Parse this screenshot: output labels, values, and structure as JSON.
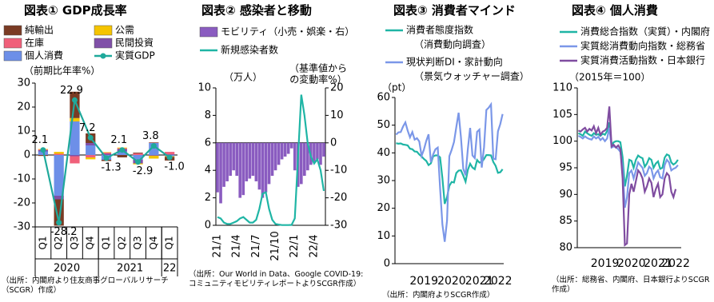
{
  "chart_data": [
    {
      "type": "bar",
      "title": "図表① GDP成長率",
      "ylabel": "（前期比年率%）",
      "stacked": true,
      "source": "（出所：内閣府より住友商事グローバルリサーチ（SCGR）作成）",
      "categories": [
        "Q1",
        "Q2",
        "Q3",
        "Q4",
        "Q1",
        "Q2",
        "Q3",
        "Q4",
        "Q1"
      ],
      "category_groups": [
        {
          "label": "2020",
          "count": 4
        },
        {
          "label": "2021",
          "count": 4
        },
        {
          "label": "22",
          "count": 1
        }
      ],
      "ylim": [
        -30,
        30
      ],
      "yticks": [
        -30,
        -20,
        -10,
        0,
        10,
        20,
        30
      ],
      "negative_label_color": "#e00000",
      "series": [
        {
          "name": "純輸出",
          "type": "bar",
          "color": "#7a3b24",
          "values": [
            -0.4,
            -11,
            11,
            4,
            -0.5,
            -1,
            0.3,
            0.2,
            -1.5
          ]
        },
        {
          "name": "公需",
          "type": "bar",
          "color": "#f5c400",
          "values": [
            0.2,
            0.8,
            1.4,
            -0.8,
            0.2,
            0.3,
            -0.4,
            -1.2,
            -0.3
          ]
        },
        {
          "name": "在庫",
          "type": "bar",
          "color": "#f0607a",
          "values": [
            0.3,
            0.5,
            -3,
            -1,
            0.5,
            0.3,
            0.7,
            0.1,
            1
          ]
        },
        {
          "name": "民間投資",
          "type": "bar",
          "color": "#8050a8",
          "values": [
            0.5,
            -1.5,
            -0.5,
            1,
            0.5,
            1,
            -1.5,
            -0.3,
            0.3
          ]
        },
        {
          "name": "個人消費",
          "type": "bar",
          "color": "#6d8fe8",
          "values": [
            1.5,
            -17,
            14,
            4,
            -2,
            1.5,
            -2,
            5,
            -0.5
          ]
        },
        {
          "name": "実質GDP",
          "type": "line",
          "markers": true,
          "color": "#1fa99b",
          "values": [
            2.1,
            -28.2,
            22.9,
            7.2,
            -1.3,
            2.1,
            -2.9,
            3.8,
            -1.0
          ],
          "value_labels": [
            "2.1",
            "-28.2",
            "22.9",
            "7.2",
            "-1.3",
            "2.1",
            "-2.9",
            "3.8",
            "-1.0"
          ]
        }
      ]
    },
    {
      "type": "bar",
      "title": "図表② 感染者と移動",
      "ylabel": "（万人）",
      "y2label": [
        "（基準値から",
        "の変動率%）"
      ],
      "source": "（出所：Our World in Data、Google COVID-19:コミュニティモビリティレポートよりSCGR作成）",
      "categories": [
        "21/1",
        null,
        null,
        null,
        null,
        null,
        "21/4",
        null,
        null,
        null,
        null,
        null,
        "21/7",
        null,
        null,
        null,
        null,
        null,
        "21/10",
        null,
        null,
        null,
        null,
        null,
        "22/1",
        null,
        null,
        null,
        null,
        null,
        "22/4",
        null,
        null,
        null
      ],
      "ylim": [
        0,
        10
      ],
      "yticks": [
        0,
        2,
        4,
        6,
        8,
        10
      ],
      "y2lim": [
        -30,
        20
      ],
      "y2ticks": [
        -30,
        -20,
        -10,
        0,
        10,
        20
      ],
      "series": [
        {
          "name": "モビリティ（小売・娯楽・右）",
          "type": "bar",
          "axis": "y2",
          "color": "#8a5cc0",
          "values": [
            -18,
            -22,
            -16,
            -14,
            -12,
            -10,
            -12,
            -20,
            -19,
            -14,
            -13,
            -12,
            -14,
            -17,
            -20,
            -18,
            -15,
            -12,
            -10,
            -8,
            -6,
            -5,
            -4,
            -2,
            -10,
            -16,
            -15,
            -12,
            -10,
            -8,
            -7,
            -6,
            -8,
            -5
          ]
        },
        {
          "name": "新規感染者数",
          "type": "line",
          "color": "#1fb5a5",
          "values": [
            0.6,
            0.5,
            0.2,
            0.1,
            0.1,
            0.2,
            0.3,
            0.5,
            0.6,
            0.4,
            0.2,
            0.2,
            0.4,
            1.2,
            2.3,
            2.4,
            1.2,
            0.4,
            0.1,
            0.05,
            0.02,
            0.02,
            0.02,
            0.03,
            0.5,
            5.0,
            9.5,
            8.0,
            6.0,
            5.0,
            4.5,
            4.8,
            4.0,
            2.5
          ]
        }
      ]
    },
    {
      "type": "line",
      "title": "図表③ 消費者マインド",
      "ylabel": "（pt）",
      "source": "（出所：内閣府よりSCGR作成）",
      "categories": [
        null,
        null,
        null,
        null,
        null,
        null,
        null,
        null,
        null,
        null,
        null,
        null,
        "2019",
        null,
        null,
        null,
        null,
        null,
        null,
        null,
        null,
        null,
        null,
        null,
        "2020",
        null,
        null,
        null,
        null,
        null,
        null,
        null,
        null,
        null,
        null,
        null,
        "2021",
        null,
        null,
        null,
        null,
        null,
        null,
        null,
        "2022",
        null,
        null
      ],
      "ylim": [
        0,
        60
      ],
      "yticks": [
        0,
        10,
        20,
        30,
        40,
        50,
        60
      ],
      "series": [
        {
          "name": "消費者態度指数",
          "note": "（消費動向調査）",
          "type": "line",
          "color": "#1fb5a5",
          "values": [
            43.5,
            43.3,
            43.4,
            43.0,
            42.9,
            42.7,
            41.5,
            41.3,
            40.5,
            40.4,
            39.4,
            38.7,
            37.8,
            37.1,
            35.6,
            36.2,
            38.7,
            39.1,
            39.1,
            38.4,
            30.9,
            21.6,
            24.0,
            28.1,
            29.5,
            29.3,
            32.7,
            33.6,
            33.7,
            31.8,
            29.6,
            33.8,
            36.1,
            34.7,
            34.1,
            37.4,
            36.5,
            36.7,
            37.8,
            39.2,
            39.2,
            39.1,
            36.7,
            35.3,
            32.8,
            33.0,
            34.1
          ]
        },
        {
          "name": "現状判断DI・家計動向",
          "note": "（景気ウォッチャー調査）",
          "type": "line",
          "color": "#7b97e8",
          "values": [
            46.6,
            47.4,
            47.5,
            49.5,
            51.0,
            48.0,
            45.6,
            47.5,
            44.8,
            45.3,
            44.1,
            38.9,
            41.2,
            44.3,
            46.7,
            36.7,
            39.4,
            41.3,
            41.9,
            27.4,
            14.2,
            7.9,
            15.5,
            38.8,
            41.1,
            43.9,
            49.3,
            54.5,
            45.6,
            34.3,
            31.9,
            41.3,
            49.0,
            39.1,
            38.1,
            47.6,
            48.4,
            34.7,
            42.1,
            55.5,
            56.3,
            57.5,
            37.9,
            37.7,
            47.8,
            50.4,
            54.0
          ]
        }
      ]
    },
    {
      "type": "line",
      "title": "図表④ 個人消費",
      "ylabel": "（2015年＝100）",
      "source": "（出所：総務省、内閣府、日本銀行よりSCGR作成）",
      "categories": [
        null,
        null,
        null,
        null,
        null,
        null,
        null,
        null,
        null,
        null,
        null,
        null,
        "2019",
        null,
        null,
        null,
        null,
        null,
        null,
        null,
        null,
        null,
        null,
        null,
        "2020",
        null,
        null,
        null,
        null,
        null,
        null,
        null,
        null,
        null,
        null,
        null,
        "2021",
        null,
        null,
        null,
        null,
        null,
        null,
        null,
        "2022",
        null,
        null
      ],
      "ylim": [
        80,
        110
      ],
      "yticks": [
        80,
        85,
        90,
        95,
        100,
        105,
        110
      ],
      "series": [
        {
          "name": "消費総合指数（実質）・内閣府",
          "type": "line",
          "color": "#1fb5a5",
          "values": [
            101.5,
            101.3,
            101.0,
            101.8,
            101.5,
            101.2,
            101.0,
            101.5,
            101.2,
            101.3,
            101.0,
            101.4,
            101.2,
            101.9,
            103.5,
            99.2,
            99.8,
            100.0,
            100.0,
            99.8,
            97.0,
            91.5,
            93.5,
            96.5,
            96.3,
            95.0,
            96.5,
            97.3,
            97.0,
            96.8,
            95.2,
            95.8,
            96.8,
            96.5,
            95.0,
            95.8,
            96.2,
            94.8,
            95.0,
            96.9,
            97.5,
            97.3,
            96.0,
            95.6,
            95.9,
            96.5,
            null
          ]
        },
        {
          "name": "実質総消費動向指数・総務省",
          "type": "line",
          "color": "#7b97e8",
          "values": [
            101.0,
            100.8,
            100.5,
            100.9,
            100.6,
            100.4,
            100.3,
            100.9,
            100.5,
            100.8,
            100.2,
            100.6,
            100.0,
            100.5,
            102.5,
            98.8,
            99.0,
            98.9,
            98.5,
            98.0,
            95.0,
            87.5,
            89.5,
            94.0,
            94.5,
            93.0,
            94.5,
            96.0,
            95.5,
            95.0,
            93.5,
            94.0,
            95.2,
            94.8,
            93.0,
            94.0,
            94.5,
            93.2,
            93.0,
            95.5,
            96.5,
            96.0,
            94.5,
            94.8,
            95.0,
            95.5,
            null
          ]
        },
        {
          "name": "実質消費活動指数・日本銀行",
          "type": "line",
          "color": "#7f4ca0",
          "values": [
            102.0,
            101.8,
            102.2,
            102.5,
            101.8,
            102.3,
            102.0,
            102.8,
            101.5,
            102.5,
            101.2,
            101.8,
            102.0,
            102.5,
            106.5,
            99.0,
            99.3,
            98.8,
            99.2,
            98.5,
            93.0,
            80.5,
            80.8,
            90.0,
            92.0,
            90.5,
            92.5,
            94.5,
            94.0,
            93.0,
            90.5,
            91.5,
            93.0,
            92.2,
            89.5,
            91.0,
            92.0,
            89.5,
            90.0,
            93.0,
            94.0,
            93.5,
            90.5,
            89.5,
            91.0,
            null,
            null
          ]
        }
      ]
    }
  ]
}
